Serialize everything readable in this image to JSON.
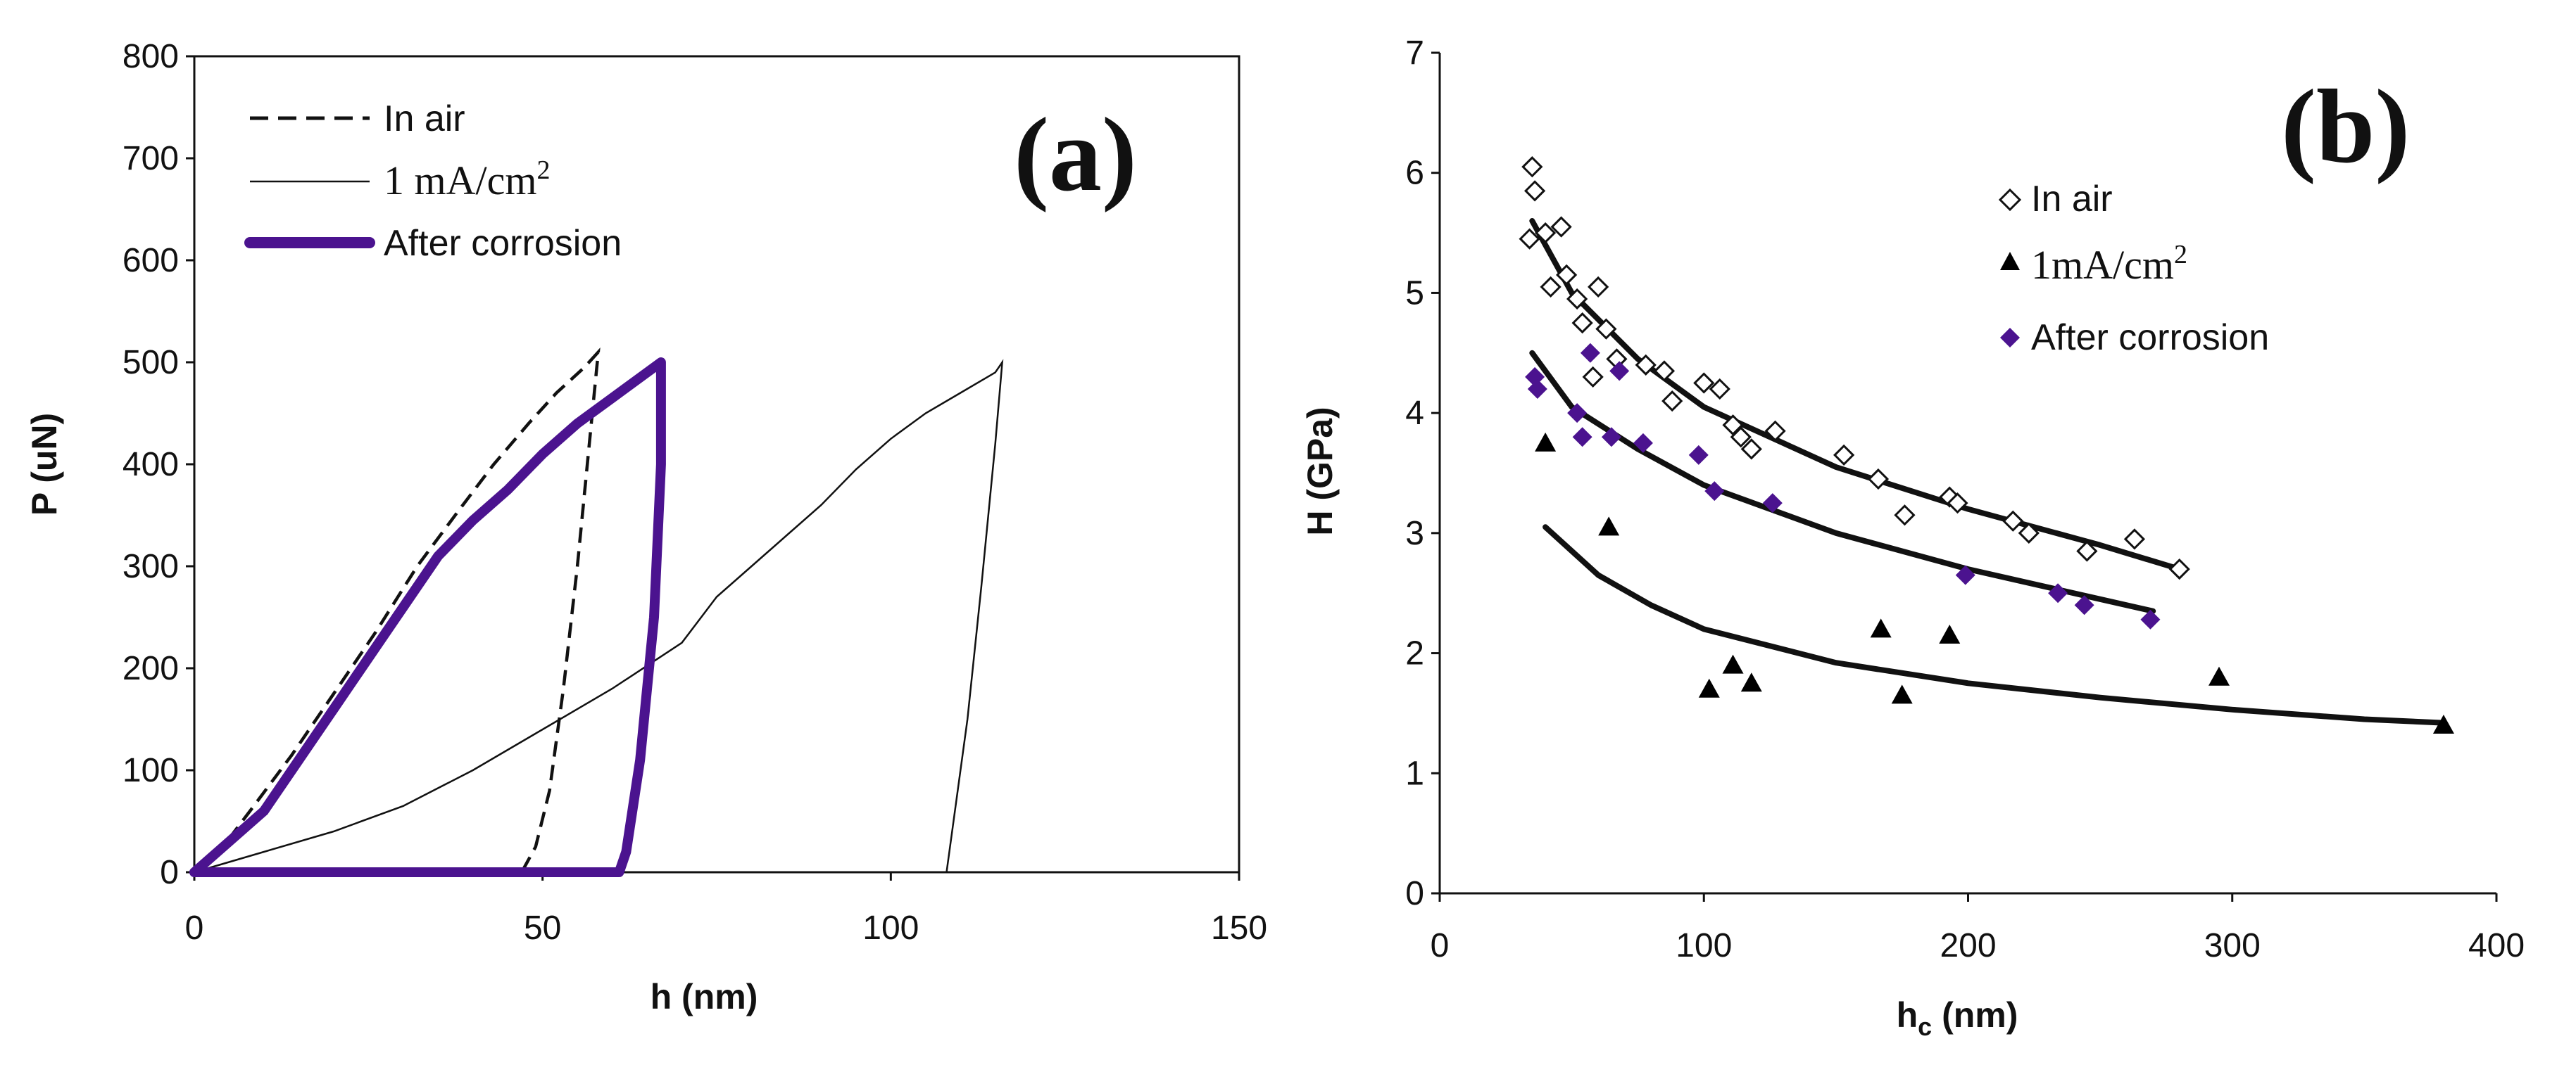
{
  "chart_data": [
    {
      "type": "line",
      "panel_label": "(a)",
      "xlabel": "h (nm)",
      "ylabel": "P (uN)",
      "xlim": [
        0,
        150
      ],
      "ylim": [
        0,
        800
      ],
      "xticks": [
        0,
        50,
        100,
        150
      ],
      "yticks": [
        0,
        100,
        200,
        300,
        400,
        500,
        600,
        700,
        800
      ],
      "legend_position": "top-left",
      "series": [
        {
          "name": "In air",
          "style": "dashed",
          "color": "#111111",
          "points": [
            [
              0,
              0
            ],
            [
              3,
              15
            ],
            [
              8,
              60
            ],
            [
              14,
              115
            ],
            [
              20,
              175
            ],
            [
              26,
              235
            ],
            [
              32,
              300
            ],
            [
              38,
              355
            ],
            [
              43,
              400
            ],
            [
              48,
              440
            ],
            [
              52,
              470
            ],
            [
              56,
              495
            ],
            [
              58,
              510
            ],
            [
              57,
              440
            ],
            [
              55,
              300
            ],
            [
              53,
              180
            ],
            [
              51,
              80
            ],
            [
              49,
              25
            ],
            [
              47,
              0
            ]
          ]
        },
        {
          "name": "1 mA/cm²",
          "superscript": "2",
          "style": "thin",
          "color": "#111111",
          "points": [
            [
              0,
              0
            ],
            [
              10,
              20
            ],
            [
              20,
              40
            ],
            [
              30,
              65
            ],
            [
              40,
              100
            ],
            [
              50,
              140
            ],
            [
              60,
              180
            ],
            [
              70,
              225
            ],
            [
              75,
              270
            ],
            [
              80,
              300
            ],
            [
              85,
              330
            ],
            [
              90,
              360
            ],
            [
              95,
              395
            ],
            [
              100,
              425
            ],
            [
              105,
              450
            ],
            [
              110,
              470
            ],
            [
              115,
              490
            ],
            [
              116,
              500
            ],
            [
              115,
              420
            ],
            [
              113,
              280
            ],
            [
              111,
              150
            ],
            [
              109,
              50
            ],
            [
              108,
              0
            ]
          ]
        },
        {
          "name": "After corrosion",
          "style": "thick",
          "color": "#4b138f",
          "points": [
            [
              0,
              0
            ],
            [
              5,
              30
            ],
            [
              10,
              60
            ],
            [
              15,
              110
            ],
            [
              20,
              160
            ],
            [
              25,
              210
            ],
            [
              30,
              260
            ],
            [
              35,
              310
            ],
            [
              40,
              345
            ],
            [
              45,
              375
            ],
            [
              50,
              410
            ],
            [
              55,
              440
            ],
            [
              60,
              465
            ],
            [
              65,
              490
            ],
            [
              67,
              500
            ],
            [
              67,
              400
            ],
            [
              66,
              250
            ],
            [
              64,
              110
            ],
            [
              62,
              20
            ],
            [
              61,
              0
            ],
            [
              0,
              0
            ]
          ]
        }
      ]
    },
    {
      "type": "scatter",
      "panel_label": "(b)",
      "xlabel": "h",
      "xlabel_sub": "c",
      "xlabel_unit": " (nm)",
      "ylabel": "H (GPa)",
      "xlim": [
        0,
        400
      ],
      "ylim": [
        0,
        7
      ],
      "xticks": [
        0,
        100,
        200,
        300,
        400
      ],
      "yticks": [
        0,
        1,
        2,
        3,
        4,
        5,
        6,
        7
      ],
      "legend_position": "top-right",
      "series": [
        {
          "name": "In air",
          "marker": "open-diamond",
          "color": "#111111",
          "points": [
            [
              35,
              6.05
            ],
            [
              36,
              5.85
            ],
            [
              34,
              5.45
            ],
            [
              40,
              5.5
            ],
            [
              46,
              5.55
            ],
            [
              42,
              5.05
            ],
            [
              48,
              5.15
            ],
            [
              52,
              4.95
            ],
            [
              54,
              4.75
            ],
            [
              58,
              4.3
            ],
            [
              60,
              5.05
            ],
            [
              63,
              4.7
            ],
            [
              67,
              4.45
            ],
            [
              78,
              4.4
            ],
            [
              85,
              4.35
            ],
            [
              88,
              4.1
            ],
            [
              100,
              4.25
            ],
            [
              106,
              4.2
            ],
            [
              111,
              3.9
            ],
            [
              114,
              3.8
            ],
            [
              118,
              3.7
            ],
            [
              127,
              3.85
            ],
            [
              153,
              3.65
            ],
            [
              166,
              3.45
            ],
            [
              176,
              3.15
            ],
            [
              193,
              3.3
            ],
            [
              196,
              3.25
            ],
            [
              217,
              3.1
            ],
            [
              223,
              3.0
            ],
            [
              245,
              2.85
            ],
            [
              263,
              2.95
            ],
            [
              280,
              2.7
            ]
          ]
        },
        {
          "name": "1mA/cm",
          "superscript": "2",
          "marker": "filled-triangle",
          "color": "#000000",
          "points": [
            [
              40,
              3.75
            ],
            [
              64,
              3.05
            ],
            [
              102,
              1.7
            ],
            [
              111,
              1.9
            ],
            [
              118,
              1.75
            ],
            [
              167,
              2.2
            ],
            [
              175,
              1.65
            ],
            [
              193,
              2.15
            ],
            [
              295,
              1.8
            ],
            [
              380,
              1.4
            ]
          ]
        },
        {
          "name": "After corrosion",
          "marker": "filled-diamond",
          "color": "#4b138f",
          "points": [
            [
              36,
              4.3
            ],
            [
              37,
              4.2
            ],
            [
              52,
              4.0
            ],
            [
              54,
              3.8
            ],
            [
              57,
              4.5
            ],
            [
              65,
              3.8
            ],
            [
              68,
              4.35
            ],
            [
              77,
              3.75
            ],
            [
              98,
              3.65
            ],
            [
              104,
              3.35
            ],
            [
              126,
              3.25
            ],
            [
              199,
              2.65
            ],
            [
              234,
              2.5
            ],
            [
              244,
              2.4
            ],
            [
              269,
              2.28
            ]
          ]
        }
      ],
      "fit_curves": [
        {
          "name": "In air fit",
          "points": [
            [
              35,
              5.6
            ],
            [
              50,
              5.0
            ],
            [
              75,
              4.45
            ],
            [
              100,
              4.05
            ],
            [
              150,
              3.55
            ],
            [
              200,
              3.2
            ],
            [
              250,
              2.9
            ],
            [
              280,
              2.7
            ]
          ]
        },
        {
          "name": "After corrosion fit",
          "points": [
            [
              35,
              4.5
            ],
            [
              50,
              4.05
            ],
            [
              75,
              3.7
            ],
            [
              100,
              3.4
            ],
            [
              150,
              3.0
            ],
            [
              200,
              2.7
            ],
            [
              250,
              2.45
            ],
            [
              270,
              2.35
            ]
          ]
        },
        {
          "name": "1mA/cm2 fit",
          "points": [
            [
              40,
              3.05
            ],
            [
              60,
              2.65
            ],
            [
              80,
              2.4
            ],
            [
              100,
              2.2
            ],
            [
              150,
              1.92
            ],
            [
              200,
              1.75
            ],
            [
              250,
              1.63
            ],
            [
              300,
              1.53
            ],
            [
              350,
              1.45
            ],
            [
              380,
              1.42
            ]
          ]
        }
      ]
    }
  ]
}
